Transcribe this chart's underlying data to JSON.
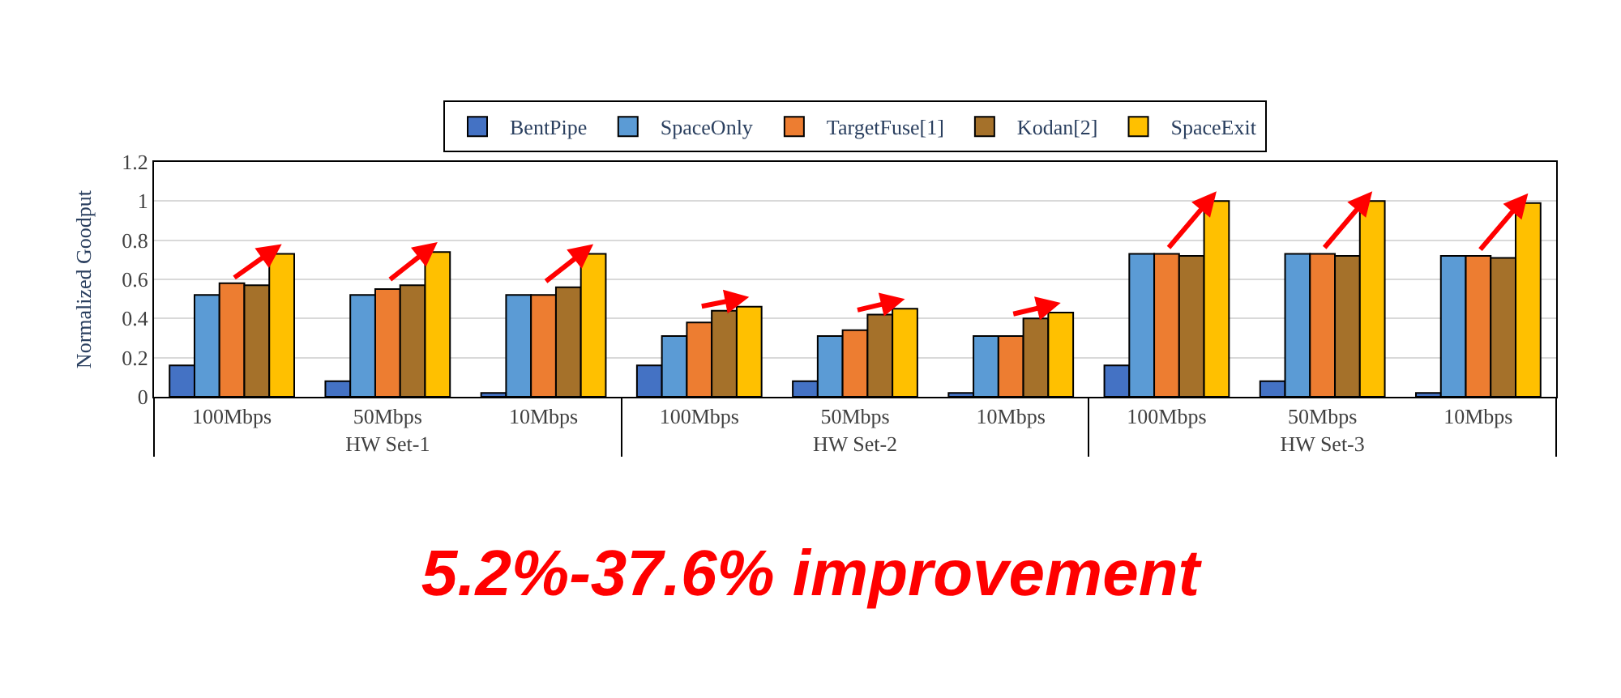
{
  "chart_data": {
    "type": "bar",
    "title": "5.2%-37.6% improvement",
    "ylabel": "Normalized Goodput",
    "categories": [
      "100Mbps",
      "50Mbps",
      "10Mbps",
      "100Mbps",
      "50Mbps",
      "10Mbps",
      "100Mbps",
      "50Mbps",
      "10Mbps"
    ],
    "annotations": [
      "HW Set-1",
      "HW Set-2",
      "HW Set-3"
    ],
    "series": [
      {
        "name": "BentPipe",
        "color": "#4472c4",
        "values": [
          0.16,
          0.08,
          0.02,
          0.16,
          0.08,
          0.02,
          0.16,
          0.08,
          0.02
        ]
      },
      {
        "name": "SpaceOnly",
        "color": "#5b9bd5",
        "values": [
          0.52,
          0.52,
          0.52,
          0.31,
          0.31,
          0.31,
          0.73,
          0.73,
          0.72
        ]
      },
      {
        "name": "TargetFuse[1]",
        "color": "#ed7d31",
        "values": [
          0.58,
          0.55,
          0.52,
          0.38,
          0.34,
          0.31,
          0.73,
          0.73,
          0.72
        ]
      },
      {
        "name": "Kodan[2]",
        "color": "#a5712a",
        "values": [
          0.57,
          0.57,
          0.56,
          0.44,
          0.42,
          0.4,
          0.72,
          0.72,
          0.71
        ]
      },
      {
        "name": "SpaceExit",
        "color": "#ffc000",
        "values": [
          0.73,
          0.74,
          0.73,
          0.46,
          0.45,
          0.43,
          1.0,
          1.0,
          0.99
        ]
      }
    ],
    "ylim": [
      0,
      1.2
    ],
    "yticks": [
      0,
      0.2,
      0.4,
      0.6,
      0.8,
      1,
      1.2
    ],
    "grid": "y",
    "legend": "top"
  }
}
